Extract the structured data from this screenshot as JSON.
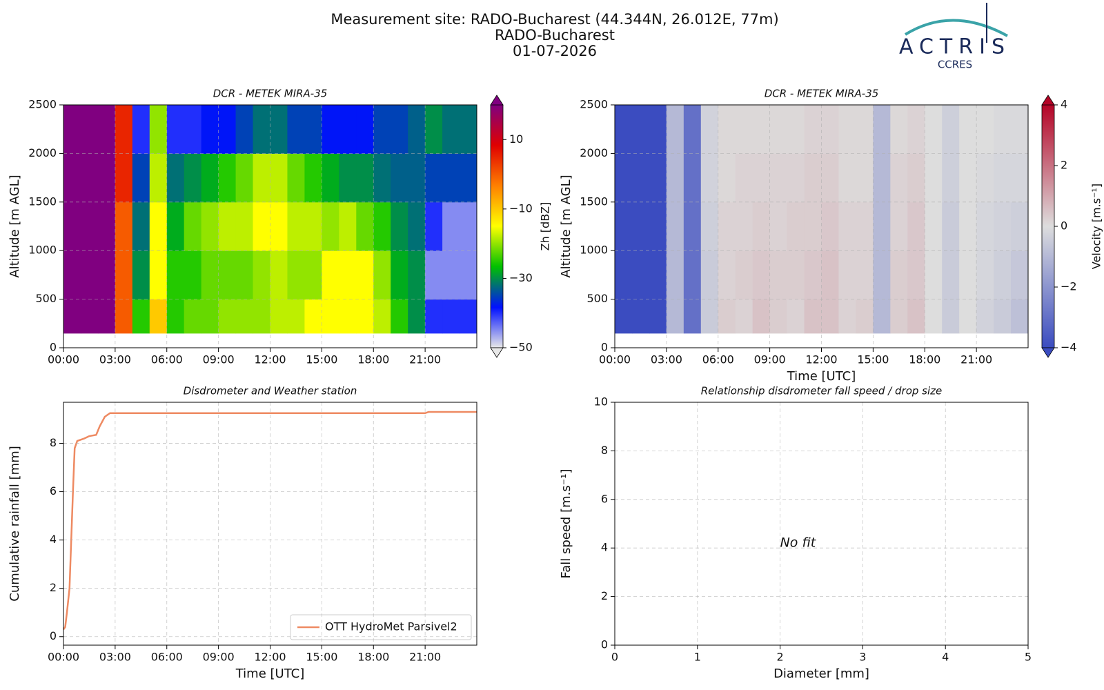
{
  "header": {
    "lines": [
      "Measurement site: RADO-Bucharest (44.344N, 26.012E, 77m)",
      "RADO-Bucharest",
      "01-07-2026"
    ],
    "logo": "ACTRIS",
    "logo_sub": "CCRES"
  },
  "chart_data": [
    {
      "type": "heatmap",
      "title": "DCR - METEK MIRA-35",
      "ylabel": "Altitude [m AGL]",
      "colorbar_label": "Zh [dBZ]",
      "x_bins": [
        0,
        1,
        2,
        3,
        4,
        5,
        6,
        7,
        8,
        9,
        10,
        11,
        12,
        13,
        14,
        15,
        16,
        17,
        18,
        19,
        20,
        21,
        22,
        23,
        24
      ],
      "y_bins": [
        150,
        500,
        1000,
        1500,
        2000,
        2500
      ],
      "values": [
        [
          20,
          20,
          20,
          0,
          -25,
          -10,
          -25,
          -22,
          -22,
          -20,
          -20,
          -20,
          -18,
          -18,
          -15,
          -15,
          -15,
          -15,
          -18,
          -25,
          -30,
          -40,
          -40,
          -40
        ],
        [
          20,
          20,
          20,
          0,
          -30,
          -15,
          -25,
          -25,
          -22,
          -22,
          -22,
          -20,
          -18,
          -20,
          -20,
          -15,
          -15,
          -15,
          -20,
          -28,
          -30,
          -45,
          -45,
          -45
        ],
        [
          20,
          20,
          20,
          0,
          -32,
          -15,
          -28,
          -22,
          -20,
          -18,
          -18,
          -15,
          -15,
          -18,
          -18,
          -20,
          -18,
          -22,
          -25,
          -30,
          -32,
          -40,
          -45,
          -45
        ],
        [
          20,
          20,
          20,
          5,
          -35,
          -18,
          -32,
          -30,
          -28,
          -25,
          -22,
          -18,
          -18,
          -22,
          -25,
          -28,
          -30,
          -30,
          -32,
          -33,
          -33,
          -35,
          -35,
          -35
        ],
        [
          20,
          20,
          20,
          5,
          -40,
          -20,
          -40,
          -40,
          -38,
          -38,
          -35,
          -32,
          -32,
          -35,
          -35,
          -38,
          -38,
          -38,
          -35,
          -35,
          -33,
          -30,
          -32,
          -32
        ]
      ],
      "clim": [
        -50,
        20
      ],
      "cticks": [
        {
          "value": -50,
          "label": "−50"
        },
        {
          "value": -30,
          "label": "−30"
        },
        {
          "value": -10,
          "label": "−10"
        },
        10
      ],
      "colors": [
        "#e8e8e8",
        "#0010ff",
        "#00c000",
        "#ffff00",
        "#ff8000",
        "#e00000",
        "#800080"
      ],
      "xlim": [
        0,
        24
      ],
      "xticks": [
        {
          "value": 0,
          "label": "00:00"
        },
        {
          "value": 3,
          "label": "03:00"
        },
        {
          "value": 6,
          "label": "06:00"
        },
        {
          "value": 9,
          "label": "09:00"
        },
        {
          "value": 12,
          "label": "12:00"
        },
        {
          "value": 15,
          "label": "15:00"
        },
        {
          "value": 18,
          "label": "18:00"
        },
        {
          "value": 21,
          "label": "21:00"
        }
      ],
      "ylim": [
        0,
        2500
      ],
      "yticks": [
        0,
        500,
        1000,
        1500,
        2000,
        2500
      ],
      "grid": true
    },
    {
      "type": "heatmap",
      "title": "DCR - METEK MIRA-35",
      "ylabel": "Altitude [m AGL]",
      "xlabel": "Time [UTC]",
      "colorbar_label": "Velocity [m.s⁻¹]",
      "x_bins": [
        0,
        1,
        2,
        3,
        4,
        5,
        6,
        7,
        8,
        9,
        10,
        11,
        12,
        13,
        14,
        15,
        16,
        17,
        18,
        19,
        20,
        21,
        22,
        23,
        24
      ],
      "y_bins": [
        150,
        500,
        1000,
        1500,
        2000,
        2500
      ],
      "values": [
        [
          -4,
          -4,
          -4,
          -1,
          -3,
          -0.5,
          0.3,
          0.2,
          0.5,
          0.3,
          0.2,
          0.5,
          0.5,
          0.2,
          0.3,
          -1,
          0.3,
          0.5,
          0,
          -0.5,
          0,
          -0.3,
          -0.5,
          -0.8
        ],
        [
          -4,
          -4,
          -4,
          -1,
          -3,
          -0.5,
          0.2,
          0.3,
          0.4,
          0.3,
          0.3,
          0.4,
          0.5,
          0.2,
          0.2,
          -1,
          0.3,
          0.4,
          0,
          -0.5,
          0,
          -0.2,
          -0.4,
          -0.6
        ],
        [
          -4,
          -4,
          -4,
          -1,
          -3,
          -0.4,
          0.2,
          0.2,
          0.3,
          0.2,
          0.3,
          0.3,
          0.4,
          0.2,
          0.2,
          -1,
          0.2,
          0.4,
          0,
          -0.5,
          0,
          -0.2,
          -0.3,
          -0.4
        ],
        [
          -4,
          -4,
          -4,
          -1,
          -3,
          -0.3,
          0.1,
          0.2,
          0.2,
          0.2,
          0.2,
          0.3,
          0.3,
          0.1,
          0.1,
          -1,
          0.2,
          0.3,
          0,
          -0.4,
          0,
          -0.1,
          -0.2,
          -0.2
        ],
        [
          -4,
          -4,
          -4,
          -1,
          -3,
          -0.3,
          0.1,
          0.1,
          0.1,
          0.1,
          0.1,
          0.2,
          0.2,
          0.1,
          0.1,
          -1,
          0.1,
          0.2,
          0,
          -0.4,
          0,
          0,
          -0.1,
          -0.1
        ]
      ],
      "clim": [
        -4,
        4
      ],
      "cticks": [
        {
          "value": -4,
          "label": "−4"
        },
        {
          "value": -2,
          "label": "−2"
        },
        0,
        2,
        4
      ],
      "colors": [
        "#3b4cc0",
        "#dddddd",
        "#b40426"
      ],
      "xlim": [
        0,
        24
      ],
      "xticks": [
        {
          "value": 0,
          "label": "00:00"
        },
        {
          "value": 3,
          "label": "03:00"
        },
        {
          "value": 6,
          "label": "06:00"
        },
        {
          "value": 9,
          "label": "09:00"
        },
        {
          "value": 12,
          "label": "12:00"
        },
        {
          "value": 15,
          "label": "15:00"
        },
        {
          "value": 18,
          "label": "18:00"
        },
        {
          "value": 21,
          "label": "21:00"
        }
      ],
      "ylim": [
        0,
        2500
      ],
      "yticks": [
        0,
        500,
        1000,
        1500,
        2000,
        2500
      ],
      "grid": true
    },
    {
      "type": "line",
      "title": "Disdrometer and Weather station",
      "ylabel": "Cumulative rainfall [mm]",
      "xlabel": "Time [UTC]",
      "x": [
        0,
        0.1,
        0.2,
        0.35,
        0.45,
        0.55,
        0.65,
        0.8,
        1.2,
        1.5,
        1.9,
        2.1,
        2.4,
        2.7,
        21,
        21.2,
        24
      ],
      "series": [
        {
          "name": "OTT HydroMet Parsivel2",
          "color": "#ee8a62",
          "values": [
            0.3,
            0.4,
            1,
            2,
            4,
            6,
            7.8,
            8.1,
            8.2,
            8.3,
            8.35,
            8.7,
            9.1,
            9.25,
            9.25,
            9.3,
            9.3
          ]
        }
      ],
      "legend": "lower right",
      "xlim": [
        0,
        24
      ],
      "xticks": [
        {
          "value": 0,
          "label": "00:00"
        },
        {
          "value": 3,
          "label": "03:00"
        },
        {
          "value": 6,
          "label": "06:00"
        },
        {
          "value": 9,
          "label": "09:00"
        },
        {
          "value": 12,
          "label": "12:00"
        },
        {
          "value": 15,
          "label": "15:00"
        },
        {
          "value": 18,
          "label": "18:00"
        },
        {
          "value": 21,
          "label": "21:00"
        }
      ],
      "ylim": [
        -0.35,
        9.7
      ],
      "yticks": [
        0,
        2,
        4,
        6,
        8
      ],
      "grid": true
    },
    {
      "type": "scatter",
      "title": "Relationship disdrometer fall speed / drop size",
      "ylabel": "Fall speed [m.s⁻¹]",
      "xlabel": "Diameter [mm]",
      "annotation": "No fit",
      "xlim": [
        0,
        5
      ],
      "xticks": [
        0,
        1,
        2,
        3,
        4,
        5
      ],
      "ylim": [
        0,
        10
      ],
      "yticks": [
        0,
        2,
        4,
        6,
        8,
        10
      ],
      "grid": true
    }
  ]
}
